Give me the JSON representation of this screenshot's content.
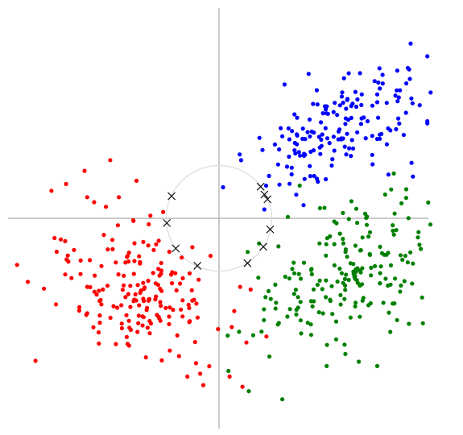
{
  "chart_data": {
    "type": "scatter",
    "title": "",
    "xlabel": "",
    "ylabel": "",
    "grid": false,
    "legend": "none",
    "xlim": [
      -4.0,
      4.0
    ],
    "ylim": [
      -4.0,
      4.0
    ],
    "circle": {
      "cx": 0.0,
      "cy": 0.0,
      "r": 1.0,
      "color": "#dddddd"
    },
    "marker_x_color": "#000000",
    "centers": [
      {
        "x": 0.92,
        "y": 0.36
      },
      {
        "x": 0.79,
        "y": 0.6
      },
      {
        "x": 0.86,
        "y": 0.45
      },
      {
        "x": 0.97,
        "y": -0.21
      },
      {
        "x": 0.84,
        "y": -0.54
      },
      {
        "x": 0.54,
        "y": -0.85
      },
      {
        "x": -0.41,
        "y": -0.9
      },
      {
        "x": -0.82,
        "y": -0.57
      },
      {
        "x": -0.99,
        "y": -0.09
      },
      {
        "x": -0.9,
        "y": 0.42
      }
    ],
    "clusters": [
      {
        "color": "#0000ff",
        "centroid": [
          2.15,
          1.58
        ],
        "spread": [
          0.85,
          0.42
        ],
        "rotation_deg": 35,
        "count": 160,
        "outliers": [
          {
            "x": 3.95,
            "y": 3.07
          },
          {
            "x": 3.38,
            "y": 2.8
          },
          {
            "x": 3.58,
            "y": 2.85
          },
          {
            "x": 3.67,
            "y": 2.18
          },
          {
            "x": 3.95,
            "y": 1.84
          },
          {
            "x": 3.95,
            "y": 1.8
          },
          {
            "x": 2.95,
            "y": 2.6
          },
          {
            "x": 3.0,
            "y": 2.2
          },
          {
            "x": 3.65,
            "y": 1.05
          },
          {
            "x": 1.12,
            "y": 1.02
          }
        ]
      },
      {
        "color": "#008000",
        "centroid": [
          2.4,
          -1.05
        ],
        "spread": [
          0.95,
          0.55
        ],
        "rotation_deg": 35,
        "count": 190,
        "outliers": [
          {
            "x": 1.2,
            "y": -3.43
          },
          {
            "x": 3.0,
            "y": -2.8
          },
          {
            "x": 3.15,
            "y": 0.45
          },
          {
            "x": 3.55,
            "y": 0.55
          },
          {
            "x": 3.8,
            "y": -0.5
          },
          {
            "x": 3.85,
            "y": -1.5
          },
          {
            "x": 3.6,
            "y": -2.0
          },
          {
            "x": 0.38,
            "y": -2.15
          },
          {
            "x": 1.53,
            "y": 0.62
          },
          {
            "x": 2.35,
            "y": 0.1
          }
        ]
      },
      {
        "color": "#ff0000",
        "centroid": [
          -1.45,
          -1.5
        ],
        "spread": [
          0.85,
          0.55
        ],
        "rotation_deg": -35,
        "count": 180,
        "outliers": [
          {
            "x": -3.48,
            "y": -2.7
          },
          {
            "x": -2.9,
            "y": 0.65
          },
          {
            "x": -2.55,
            "y": 0.9
          },
          {
            "x": -1.9,
            "y": 0.4
          },
          {
            "x": -2.5,
            "y": 0.4
          },
          {
            "x": -3.0,
            "y": -0.4
          },
          {
            "x": -2.75,
            "y": -0.6
          },
          {
            "x": -2.5,
            "y": -1.3
          },
          {
            "x": -2.5,
            "y": -1.8
          },
          {
            "x": -0.6,
            "y": -3.0
          },
          {
            "x": 0.2,
            "y": -3.0
          },
          {
            "x": 0.4,
            "y": -1.3
          },
          {
            "x": 0.6,
            "y": -1.35
          },
          {
            "x": -1.3,
            "y": 0.05
          }
        ]
      }
    ]
  }
}
